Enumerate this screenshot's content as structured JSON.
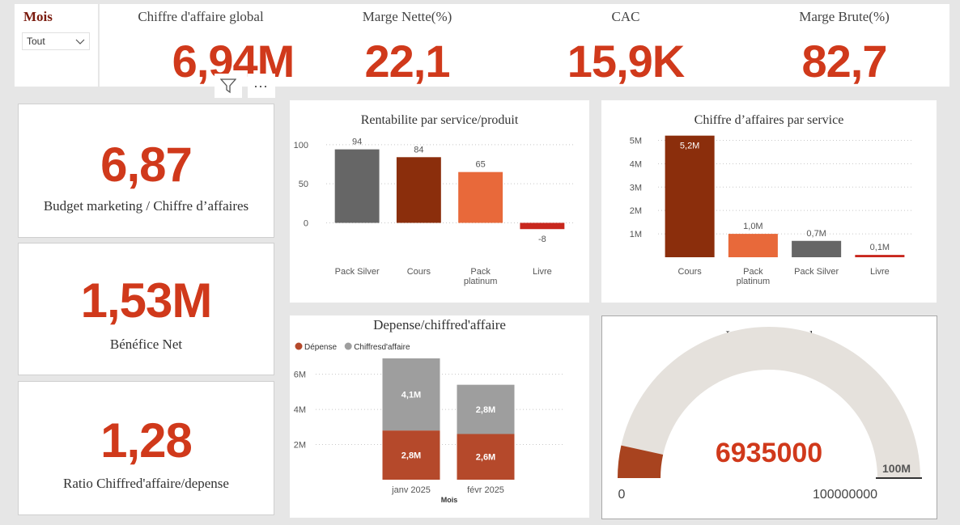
{
  "slicer": {
    "title": "Mois",
    "selected": "Tout"
  },
  "kpis": [
    {
      "title": "Chiffre d'affaire global",
      "value": "6,94M"
    },
    {
      "title": "Marge Nette(%)",
      "value": "22,1"
    },
    {
      "title": "CAC",
      "value": "15,9K"
    },
    {
      "title": "Marge Brute(%)",
      "value": "82,7"
    }
  ],
  "left_cards": [
    {
      "value": "6,87",
      "label": "Budget marketing / Chiffre d’affaires"
    },
    {
      "value": "1,53M",
      "label": "Bénéfice Net"
    },
    {
      "value": "1,28",
      "label": "Ratio Chiffred'affaire/depense"
    }
  ],
  "toolbar": {
    "filter_icon": "filter-icon",
    "more_icon": "more-options-icon",
    "more_glyph": "···"
  },
  "colors": {
    "accent": "#d0391b",
    "dark_brown": "#8b2e0c",
    "orange": "#e8693a",
    "gray": "#666666",
    "red": "#c8271d",
    "depense": "#b5492b",
    "ca_gray": "#9e9e9e",
    "gauge_track": "#e5e1dc"
  },
  "chart_data": [
    {
      "type": "bar",
      "title": "Rentabilite par service/produit",
      "categories": [
        "Pack Silver",
        "Cours",
        "Pack platinum",
        "Livre"
      ],
      "category_lines": [
        [
          "Pack Silver"
        ],
        [
          "Cours"
        ],
        [
          "Pack",
          "platinum"
        ],
        [
          "Livre"
        ]
      ],
      "values": [
        94,
        84,
        65,
        -8
      ],
      "labels": [
        "94",
        "84",
        "65",
        "-8"
      ],
      "colors": [
        "#666666",
        "#8b2e0c",
        "#e8693a",
        "#c8271d"
      ],
      "ylim": [
        -15,
        105
      ],
      "yticks": [
        0,
        50,
        100
      ],
      "ytick_labels": [
        "0",
        "50",
        "100"
      ],
      "grid": true
    },
    {
      "type": "bar",
      "title": "Chiffre d’affaires par service",
      "categories": [
        "Cours",
        "Pack platinum",
        "Pack Silver",
        "Livre"
      ],
      "category_lines": [
        [
          "Cours"
        ],
        [
          "Pack",
          "platinum"
        ],
        [
          "Pack Silver"
        ],
        [
          "Livre"
        ]
      ],
      "values": [
        5.2,
        1.0,
        0.7,
        0.1
      ],
      "labels": [
        "5,2M",
        "1,0M",
        "0,7M",
        "0,1M"
      ],
      "colors": [
        "#8b2e0c",
        "#e8693a",
        "#666666",
        "#c8271d"
      ],
      "ylim": [
        0,
        5.5
      ],
      "yticks": [
        1,
        2,
        3,
        4,
        5
      ],
      "ytick_labels": [
        "1M",
        "2M",
        "3M",
        "4M",
        "5M"
      ],
      "grid": true
    },
    {
      "type": "bar",
      "stacked": true,
      "title": "Depense/chiffred'affaire",
      "xlabel": "Mois",
      "categories": [
        "janv 2025",
        "févr 2025"
      ],
      "series": [
        {
          "name": "Dépense",
          "values": [
            2.8,
            2.6
          ],
          "labels": [
            "2,8M",
            "2,6M"
          ],
          "color": "#b5492b"
        },
        {
          "name": "Chiffresd'affaire",
          "values": [
            4.1,
            2.8
          ],
          "labels": [
            "4,1M",
            "2,8M"
          ],
          "color": "#9e9e9e"
        }
      ],
      "ylim": [
        0,
        7.5
      ],
      "yticks": [
        2,
        4,
        6
      ],
      "ytick_labels": [
        "2M",
        "4M",
        "6M"
      ],
      "legend": "top-left",
      "grid": true
    },
    {
      "type": "gauge",
      "title": "L'objectif annuel",
      "value": 6935000,
      "value_label": "6935000",
      "min": 0,
      "max": 100000000,
      "min_label": "0",
      "max_label": "100000000",
      "target": 100000000,
      "target_label": "100M",
      "fill_color": "#a8431f",
      "track_color": "#e5e1dc"
    }
  ]
}
